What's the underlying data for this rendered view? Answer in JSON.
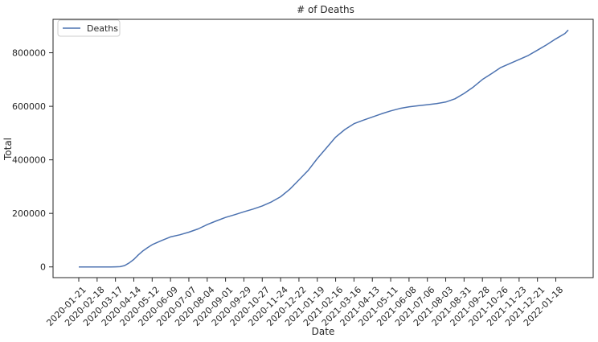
{
  "chart_data": {
    "type": "line",
    "title": "# of Deaths",
    "xlabel": "Date",
    "ylabel": "Total",
    "x_range": [
      "2020-01-21",
      "2022-02-06"
    ],
    "ylim": [
      -40000,
      925000
    ],
    "y_ticks": [
      0,
      200000,
      400000,
      600000,
      800000
    ],
    "y_tick_labels": [
      "0",
      "200000",
      "400000",
      "600000",
      "800000"
    ],
    "x_ticks": [
      "2020-01-21",
      "2020-02-18",
      "2020-03-17",
      "2020-04-14",
      "2020-05-12",
      "2020-06-09",
      "2020-07-07",
      "2020-08-04",
      "2020-09-01",
      "2020-09-29",
      "2020-10-27",
      "2020-11-24",
      "2020-12-22",
      "2021-01-19",
      "2021-02-16",
      "2021-03-16",
      "2021-04-13",
      "2021-05-11",
      "2021-06-08",
      "2021-07-06",
      "2021-08-03",
      "2021-08-31",
      "2021-09-28",
      "2021-10-26",
      "2021-11-23",
      "2021-12-21",
      "2022-01-18"
    ],
    "legend": {
      "position": "top-left",
      "entries": [
        "Deaths"
      ]
    },
    "grid": false,
    "series": [
      {
        "name": "Deaths",
        "color": "#4c72b0",
        "points": [
          [
            "2020-01-21",
            0
          ],
          [
            "2020-02-18",
            0
          ],
          [
            "2020-03-10",
            0
          ],
          [
            "2020-03-17",
            150
          ],
          [
            "2020-03-24",
            1000
          ],
          [
            "2020-03-31",
            5000
          ],
          [
            "2020-04-07",
            15000
          ],
          [
            "2020-04-14",
            28000
          ],
          [
            "2020-04-21",
            45000
          ],
          [
            "2020-04-28",
            60000
          ],
          [
            "2020-05-05",
            72000
          ],
          [
            "2020-05-12",
            83000
          ],
          [
            "2020-05-26",
            98000
          ],
          [
            "2020-06-09",
            112000
          ],
          [
            "2020-06-23",
            120000
          ],
          [
            "2020-07-07",
            130000
          ],
          [
            "2020-07-21",
            142000
          ],
          [
            "2020-08-04",
            158000
          ],
          [
            "2020-08-18",
            172000
          ],
          [
            "2020-09-01",
            185000
          ],
          [
            "2020-09-15",
            195000
          ],
          [
            "2020-09-29",
            206000
          ],
          [
            "2020-10-13",
            216000
          ],
          [
            "2020-10-27",
            228000
          ],
          [
            "2020-11-10",
            243000
          ],
          [
            "2020-11-24",
            262000
          ],
          [
            "2020-12-08",
            290000
          ],
          [
            "2020-12-22",
            325000
          ],
          [
            "2021-01-05",
            360000
          ],
          [
            "2021-01-19",
            405000
          ],
          [
            "2021-02-02",
            445000
          ],
          [
            "2021-02-16",
            485000
          ],
          [
            "2021-03-02",
            513000
          ],
          [
            "2021-03-16",
            535000
          ],
          [
            "2021-03-30",
            548000
          ],
          [
            "2021-04-13",
            560000
          ],
          [
            "2021-04-27",
            572000
          ],
          [
            "2021-05-11",
            583000
          ],
          [
            "2021-05-25",
            592000
          ],
          [
            "2021-06-08",
            598000
          ],
          [
            "2021-06-22",
            602000
          ],
          [
            "2021-07-06",
            606000
          ],
          [
            "2021-07-20",
            610000
          ],
          [
            "2021-08-03",
            616000
          ],
          [
            "2021-08-17",
            628000
          ],
          [
            "2021-08-31",
            648000
          ],
          [
            "2021-09-14",
            672000
          ],
          [
            "2021-09-28",
            700000
          ],
          [
            "2021-10-12",
            722000
          ],
          [
            "2021-10-26",
            745000
          ],
          [
            "2021-11-09",
            760000
          ],
          [
            "2021-11-23",
            775000
          ],
          [
            "2021-12-07",
            790000
          ],
          [
            "2021-12-21",
            810000
          ],
          [
            "2022-01-04",
            830000
          ],
          [
            "2022-01-18",
            852000
          ],
          [
            "2022-02-01",
            872000
          ],
          [
            "2022-02-06",
            885000
          ]
        ]
      }
    ]
  }
}
